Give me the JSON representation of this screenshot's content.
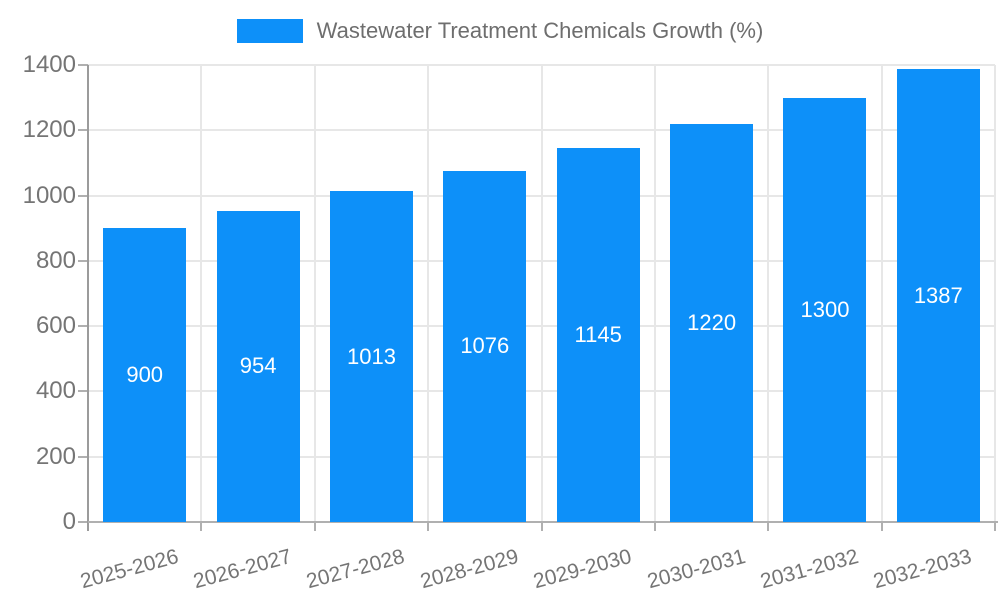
{
  "chart_data": {
    "type": "bar",
    "title": "Wastewater Treatment Chemicals Growth (%)",
    "legend": {
      "position": "top",
      "label": "Wastewater Treatment Chemicals Growth (%)",
      "swatch": "blue-rect"
    },
    "categories": [
      "2025-2026",
      "2026-2027",
      "2027-2028",
      "2028-2029",
      "2029-2030",
      "2030-2031",
      "2031-2032",
      "2032-2033"
    ],
    "values": [
      900,
      954,
      1013,
      1076,
      1145,
      1220,
      1300,
      1387
    ],
    "value_labels": [
      "900",
      "954",
      "1013",
      "1076",
      "1145",
      "1220",
      "1300",
      "1387"
    ],
    "value_label_position": "inside-center",
    "xlabel": "",
    "ylabel": "",
    "ylim": [
      0,
      1400
    ],
    "yticks": [
      0,
      200,
      400,
      600,
      800,
      1000,
      1200,
      1400
    ],
    "x_label_rotation_deg": -15,
    "grid": true,
    "colors": {
      "bar": "#0d90f9",
      "axis_text": "#757575",
      "legend_text": "#6e6e6e",
      "grid_line": "#e7e7e7",
      "axis_line": "#9b9b9b",
      "baseline": "#b0b0b0",
      "value_label": "#ffffff",
      "background": "#ffffff"
    }
  }
}
